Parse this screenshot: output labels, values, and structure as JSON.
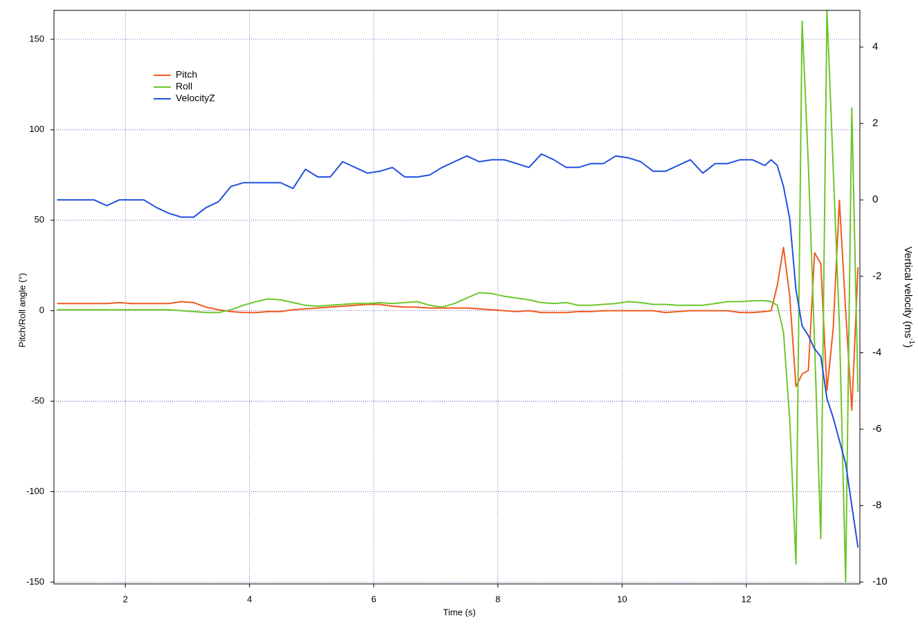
{
  "chart_data": {
    "type": "line",
    "xlabel": "Time (s)",
    "ylabel": "Pitch/Roll angle (°)",
    "y2label": {
      "text": "Vertical velocity (ms",
      "superscript": "-1",
      "suffix": ")"
    },
    "xlim": [
      0.85,
      13.83
    ],
    "xticks": [
      2,
      4,
      6,
      8,
      10,
      12
    ],
    "ylim": [
      -151,
      166
    ],
    "yticks": [
      -150,
      -100,
      -50,
      0,
      50,
      100,
      150
    ],
    "y2lim": [
      -10.05,
      4.96
    ],
    "y2ticks": [
      -10,
      -8,
      -6,
      -4,
      -2,
      0,
      2,
      4
    ],
    "grid": true,
    "legend": "upper left",
    "x": [
      0.9,
      1.1,
      1.3,
      1.5,
      1.7,
      1.9,
      2.1,
      2.3,
      2.5,
      2.7,
      2.9,
      3.1,
      3.3,
      3.5,
      3.7,
      3.9,
      4.1,
      4.3,
      4.5,
      4.7,
      4.9,
      5.1,
      5.3,
      5.5,
      5.7,
      5.9,
      6.1,
      6.3,
      6.5,
      6.7,
      6.9,
      7.1,
      7.3,
      7.5,
      7.7,
      7.9,
      8.1,
      8.3,
      8.5,
      8.7,
      8.9,
      9.1,
      9.3,
      9.5,
      9.7,
      9.9,
      10.1,
      10.3,
      10.5,
      10.7,
      10.9,
      11.1,
      11.3,
      11.5,
      11.7,
      11.9,
      12.1,
      12.3,
      12.4,
      12.5,
      12.6,
      12.7,
      12.8,
      12.9,
      13.0,
      13.1,
      13.2,
      13.3,
      13.4,
      13.5,
      13.6,
      13.7,
      13.8
    ],
    "series": [
      {
        "name": "Pitch",
        "color": "#f05a1e",
        "values": [
          4,
          4,
          4,
          4,
          4,
          4.5,
          4,
          4,
          4,
          4,
          5,
          4.5,
          2,
          0.5,
          -0.5,
          -1,
          -1,
          -0.5,
          -0.5,
          0.5,
          1,
          1.5,
          2,
          2.5,
          3,
          3.5,
          3.5,
          2.5,
          2,
          2,
          1.5,
          1.5,
          1.5,
          1.5,
          1,
          0.5,
          0,
          -0.5,
          0,
          -1,
          -1,
          -1,
          -0.5,
          -0.5,
          0,
          0,
          0,
          0,
          0,
          -1,
          -0.5,
          0,
          0,
          0,
          0,
          -1,
          -1,
          -0.5,
          0,
          14,
          35,
          8,
          -42,
          -35,
          -33,
          32,
          26,
          -44,
          -10,
          61,
          0,
          -55,
          24
        ]
      },
      {
        "name": "Roll",
        "color": "#6cc62a",
        "values": [
          0.5,
          0.5,
          0.5,
          0.5,
          0.5,
          0.5,
          0.5,
          0.5,
          0.5,
          0.5,
          0,
          -0.5,
          -1,
          -1,
          0.5,
          3,
          5,
          6.5,
          6,
          4.5,
          3,
          2.5,
          3,
          3.5,
          4,
          4,
          4.5,
          4,
          4.5,
          5,
          3,
          2,
          4,
          7,
          10,
          9.5,
          8,
          7,
          6,
          4.5,
          4,
          4.5,
          3,
          3,
          3.5,
          4,
          5,
          4.5,
          3.5,
          3.5,
          3,
          3,
          3,
          4,
          5,
          5,
          5.5,
          5.5,
          5,
          3,
          -12,
          -60,
          -140,
          160,
          81,
          -18,
          -126,
          166,
          79,
          -8,
          -150,
          112,
          -45
        ]
      },
      {
        "name": "VelocityZ",
        "color": "#1f4fe0",
        "axis": "y2",
        "values": [
          0,
          0,
          0,
          0,
          -0.15,
          0,
          0,
          0,
          -0.2,
          -0.35,
          -0.45,
          -0.45,
          -0.2,
          -0.05,
          0.35,
          0.45,
          0.45,
          0.45,
          0.45,
          0.3,
          0.8,
          0.6,
          0.6,
          1.0,
          0.85,
          0.7,
          0.75,
          0.85,
          0.6,
          0.6,
          0.65,
          0.85,
          1.0,
          1.15,
          1.0,
          1.05,
          1.05,
          0.95,
          0.85,
          1.2,
          1.05,
          0.85,
          0.85,
          0.95,
          0.95,
          1.15,
          1.1,
          1.0,
          0.75,
          0.75,
          0.9,
          1.05,
          0.7,
          0.95,
          0.95,
          1.05,
          1.05,
          0.9,
          1.05,
          0.9,
          0.35,
          -0.5,
          -2.35,
          -3.3,
          -3.55,
          -3.9,
          -4.1,
          -5.2,
          -5.7,
          -6.3,
          -6.9,
          -8,
          -9.1
        ]
      }
    ]
  }
}
